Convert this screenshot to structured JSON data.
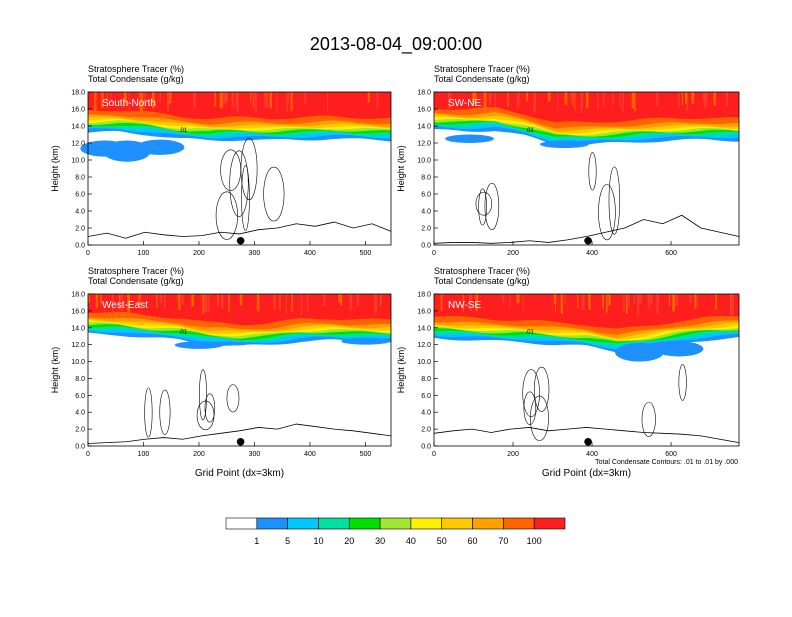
{
  "title": "2013-08-04_09:00:00",
  "colors": {
    "levels": [
      "#ffffff",
      "#1e90ff",
      "#00c8ff",
      "#00e0a0",
      "#00e000",
      "#a0e632",
      "#fff000",
      "#ffc800",
      "#ffa000",
      "#ff6400",
      "#ff1e1e"
    ]
  },
  "colorbar": {
    "labels": [
      "1",
      "5",
      "10",
      "20",
      "30",
      "40",
      "50",
      "60",
      "70",
      "100"
    ]
  },
  "contour_note": "Total Condensate Contours: .01 to .01 by .000",
  "contour_label_text": ".01",
  "chart_data": [
    {
      "type": "contour",
      "panel_label": "South-North",
      "title_line1": "Stratosphere Tracer   (%)",
      "title_line2": "Total Condensate   (g/kg)",
      "ylabel": "Height (km)",
      "xlabel": "",
      "xlim": [
        0,
        546
      ],
      "ylim": [
        0,
        18
      ],
      "xticks": [
        "0",
        "100",
        "200",
        "300",
        "400",
        "500"
      ],
      "yticks": [
        "0.0",
        "2.0",
        "4.0",
        "6.0",
        "8.0",
        "10.0",
        "12.0",
        "14.0",
        "16.0",
        "18.0"
      ],
      "dot_x": 275,
      "tracer_base_km": [
        13.2,
        13.3,
        13.0,
        12.5,
        12.3,
        12.4,
        12.3,
        12.4,
        12.5,
        12.4,
        12.3
      ],
      "blue_blob_km": [
        [
          30,
          10.4,
          12.3
        ],
        [
          70,
          9.8,
          12.3
        ],
        [
          130,
          10.6,
          12.4
        ]
      ],
      "terrain_km": [
        1.0,
        1.4,
        0.8,
        1.5,
        1.2,
        1.0,
        1.1,
        1.5,
        1.3,
        1.8,
        2.0,
        2.5,
        2.2,
        2.7,
        2.0,
        2.5,
        1.6
      ]
    },
    {
      "type": "contour",
      "panel_label": "SW-NE",
      "title_line1": "Stratosphere Tracer   (%)",
      "title_line2": "Total Condensate   (g/kg)",
      "ylabel": "Height (km)",
      "xlabel": "",
      "xlim": [
        0,
        772
      ],
      "ylim": [
        0,
        18
      ],
      "xticks": [
        "0",
        "200",
        "400",
        "600"
      ],
      "yticks": [
        "0.0",
        "2.0",
        "4.0",
        "6.0",
        "8.0",
        "10.0",
        "12.0",
        "14.0",
        "16.0",
        "18.0"
      ],
      "dot_x": 390,
      "tracer_base_km": [
        13.5,
        13.4,
        13.5,
        12.8,
        11.8,
        11.8,
        12.0,
        12.2,
        12.3,
        12.4,
        12.3
      ],
      "blue_blob_km": [
        [
          90,
          12.0,
          13.0
        ],
        [
          330,
          11.4,
          12.3
        ]
      ],
      "terrain_km": [
        0.2,
        0.3,
        0.3,
        0.2,
        0.3,
        0.5,
        0.3,
        0.6,
        1.0,
        1.5,
        2.0,
        3.0,
        2.5,
        3.5,
        2.0,
        1.5,
        1.0
      ]
    },
    {
      "type": "contour",
      "panel_label": "West-East",
      "title_line1": "Stratosphere Tracer   (%)",
      "title_line2": "Total Condensate   (g/kg)",
      "ylabel": "Height (km)",
      "xlabel": "Grid Point (dx=3km)",
      "xlim": [
        0,
        546
      ],
      "ylim": [
        0,
        18
      ],
      "xticks": [
        "0",
        "100",
        "200",
        "300",
        "400",
        "500"
      ],
      "yticks": [
        "0.0",
        "2.0",
        "4.0",
        "6.0",
        "8.0",
        "10.0",
        "12.0",
        "14.0",
        "16.0",
        "18.0"
      ],
      "dot_x": 275,
      "tracer_base_km": [
        13.3,
        13.2,
        12.8,
        12.6,
        12.0,
        11.8,
        12.0,
        12.4,
        12.5,
        12.4,
        12.3
      ],
      "blue_blob_km": [
        [
          200,
          11.5,
          12.4
        ],
        [
          500,
          12.0,
          12.8
        ]
      ],
      "terrain_km": [
        0.3,
        0.4,
        0.5,
        0.8,
        1.0,
        0.8,
        1.2,
        1.5,
        1.8,
        2.2,
        2.0,
        2.6,
        2.3,
        2.0,
        1.8,
        1.5,
        1.2
      ]
    },
    {
      "type": "contour",
      "panel_label": "NW-SE",
      "title_line1": "Stratosphere Tracer   (%)",
      "title_line2": "Total Condensate   (g/kg)",
      "ylabel": "Height (km)",
      "xlabel": "Grid Point (dx=3km)",
      "xlim": [
        0,
        772
      ],
      "ylim": [
        0,
        18
      ],
      "xticks": [
        "0",
        "200",
        "400",
        "600"
      ],
      "yticks": [
        "0.0",
        "2.0",
        "4.0",
        "6.0",
        "8.0",
        "10.0",
        "12.0",
        "14.0",
        "16.0",
        "18.0"
      ],
      "dot_x": 390,
      "tracer_base_km": [
        12.8,
        12.6,
        12.4,
        12.3,
        12.0,
        11.8,
        11.2,
        11.6,
        12.2,
        12.6,
        12.8
      ],
      "blue_blob_km": [
        [
          520,
          10.0,
          12.2
        ],
        [
          620,
          10.6,
          12.4
        ]
      ],
      "terrain_km": [
        1.5,
        1.8,
        2.0,
        1.6,
        2.0,
        2.2,
        1.8,
        2.0,
        2.2,
        2.0,
        1.8,
        1.6,
        1.5,
        1.4,
        1.2,
        0.8,
        0.4
      ]
    }
  ]
}
